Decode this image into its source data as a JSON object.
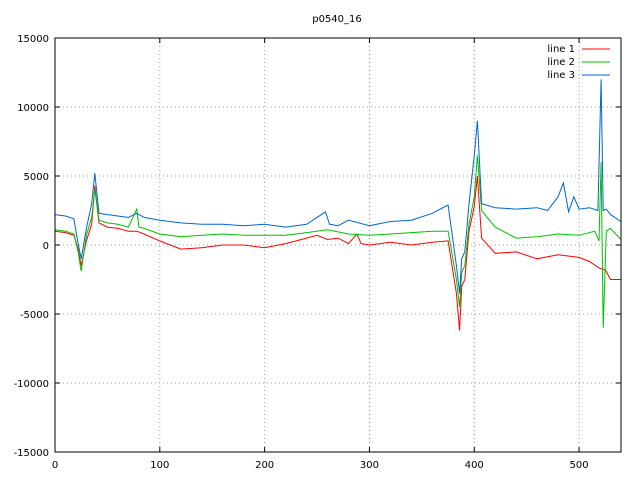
{
  "chart_data": {
    "type": "line",
    "title": "p0540_16",
    "xlabel": "",
    "ylabel": "",
    "xlim": [
      0,
      540
    ],
    "ylim": [
      -15000,
      15000
    ],
    "x_ticks": [
      0,
      100,
      200,
      300,
      400,
      500
    ],
    "y_ticks": [
      -15000,
      -10000,
      -5000,
      0,
      5000,
      10000,
      15000
    ],
    "grid": true,
    "legend": "top-right",
    "series": [
      {
        "name": "line 1",
        "color": "#ff0000",
        "x": [
          0,
          10,
          18,
          22,
          25,
          30,
          35,
          38,
          42,
          50,
          60,
          70,
          78,
          85,
          100,
          120,
          140,
          160,
          180,
          200,
          220,
          240,
          250,
          260,
          270,
          280,
          288,
          292,
          300,
          320,
          340,
          360,
          375,
          383,
          386,
          388,
          391,
          395,
          400,
          403,
          407,
          420,
          440,
          460,
          480,
          500,
          510,
          520,
          525,
          530,
          540
        ],
        "y": [
          1000,
          900,
          700,
          -300,
          -1500,
          300,
          1500,
          4300,
          1600,
          1300,
          1200,
          1000,
          1000,
          800,
          300,
          -300,
          -200,
          0,
          0,
          -200,
          100,
          500,
          700,
          400,
          500,
          100,
          800,
          100,
          0,
          200,
          0,
          200,
          300,
          -3500,
          -6200,
          -3000,
          -2500,
          1000,
          2800,
          5000,
          500,
          -600,
          -500,
          -1000,
          -700,
          -900,
          -1200,
          -1700,
          -1800,
          -2500,
          -2500
        ]
      },
      {
        "name": "line 2",
        "color": "#00c000",
        "x": [
          0,
          10,
          18,
          22,
          25,
          30,
          35,
          38,
          42,
          50,
          60,
          70,
          78,
          80,
          85,
          100,
          120,
          140,
          160,
          180,
          200,
          220,
          240,
          260,
          280,
          300,
          320,
          340,
          360,
          375,
          383,
          386,
          388,
          391,
          395,
          400,
          403,
          407,
          420,
          440,
          460,
          480,
          500,
          515,
          519,
          521,
          523,
          526,
          530,
          540
        ],
        "y": [
          1100,
          1000,
          800,
          -500,
          -1900,
          700,
          2000,
          4000,
          1800,
          1600,
          1500,
          1300,
          2600,
          1300,
          1200,
          800,
          600,
          700,
          800,
          700,
          700,
          700,
          900,
          1100,
          800,
          700,
          800,
          900,
          1000,
          1000,
          -2500,
          -4500,
          -2000,
          -1500,
          1500,
          3500,
          6500,
          2500,
          1300,
          500,
          600,
          800,
          700,
          1000,
          300,
          6000,
          -6000,
          1000,
          1200,
          400
        ]
      },
      {
        "name": "line 3",
        "color": "#0066cc",
        "x": [
          0,
          10,
          18,
          22,
          25,
          30,
          35,
          38,
          42,
          50,
          60,
          70,
          78,
          85,
          100,
          120,
          140,
          160,
          180,
          200,
          220,
          240,
          250,
          258,
          262,
          270,
          280,
          300,
          320,
          340,
          360,
          375,
          383,
          386,
          388,
          391,
          395,
          400,
          403,
          407,
          420,
          440,
          460,
          470,
          480,
          485,
          490,
          495,
          500,
          510,
          518,
          521,
          523,
          526,
          530,
          540
        ],
        "y": [
          2200,
          2100,
          1900,
          100,
          -1000,
          1200,
          3000,
          5200,
          2300,
          2200,
          2100,
          2000,
          2300,
          2000,
          1800,
          1600,
          1500,
          1500,
          1400,
          1500,
          1300,
          1500,
          2000,
          2400,
          1500,
          1400,
          1800,
          1400,
          1700,
          1800,
          2300,
          2900,
          -1500,
          -3500,
          -1000,
          -500,
          3000,
          6500,
          9000,
          3000,
          2700,
          2600,
          2700,
          2500,
          3500,
          4500,
          2400,
          3500,
          2600,
          2700,
          2500,
          12000,
          2500,
          2600,
          2200,
          1700
        ]
      }
    ]
  }
}
